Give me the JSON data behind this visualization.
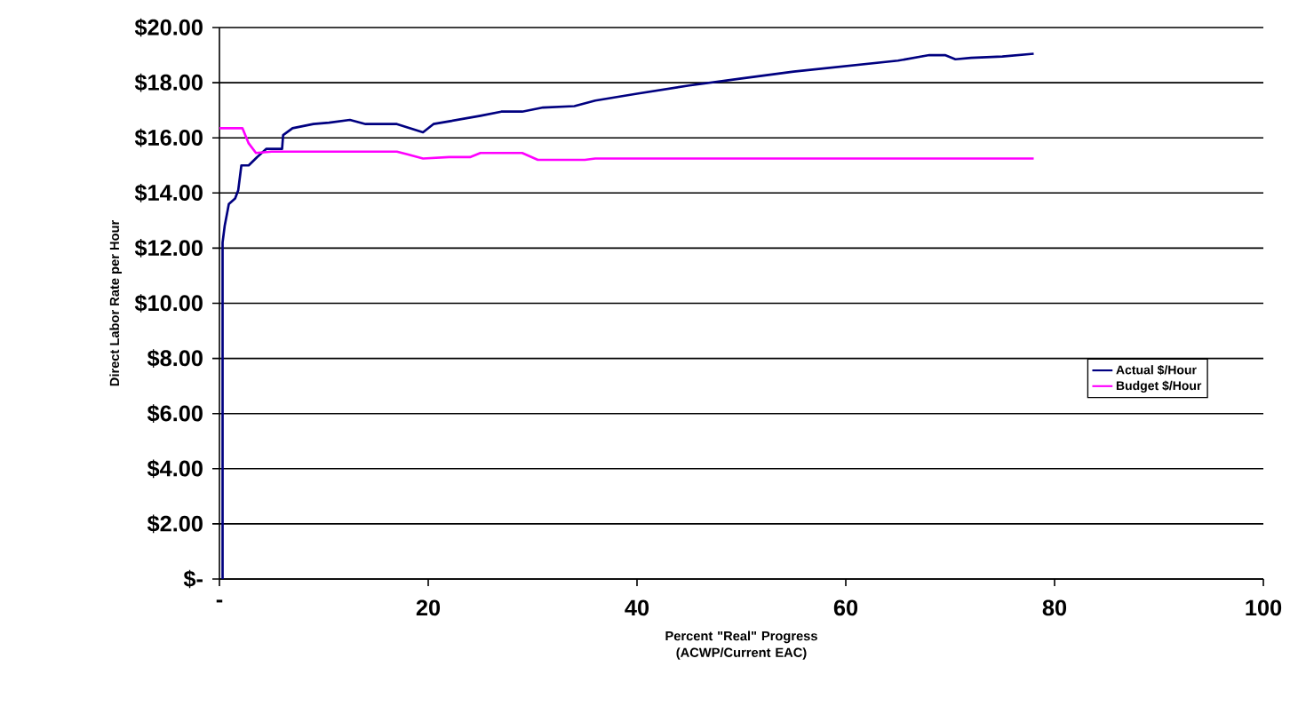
{
  "chart_data": {
    "type": "line",
    "xlabel": "Percent \"Real\" Progress (ACWP/Current EAC)",
    "ylabel": "Direct Labor Rate per Hour",
    "series": [
      {
        "name": "Actual $/Hour",
        "color": "#000080",
        "x": [
          0.3,
          0.3,
          0.5,
          0.9,
          1.5,
          1.8,
          2.1,
          2.8,
          3.6,
          4.5,
          6.0,
          6.1,
          7,
          9,
          10.5,
          12.5,
          14,
          17,
          19.5,
          20.5,
          22,
          25,
          27,
          29,
          31,
          34,
          36,
          40,
          45,
          50,
          55,
          60,
          65,
          68,
          69.5,
          70.5,
          72,
          75,
          78
        ],
        "values": [
          0,
          12.2,
          12.8,
          13.6,
          13.8,
          14.1,
          15.0,
          15.0,
          15.3,
          15.6,
          15.6,
          16.1,
          16.35,
          16.5,
          16.55,
          16.65,
          16.5,
          16.5,
          16.2,
          16.5,
          16.6,
          16.8,
          16.95,
          16.95,
          17.1,
          17.15,
          17.35,
          17.6,
          17.9,
          18.15,
          18.4,
          18.6,
          18.8,
          19.0,
          19.0,
          18.85,
          18.9,
          18.95,
          19.05
        ]
      },
      {
        "name": "Budget $/Hour",
        "color": "#ff00ff",
        "x": [
          0,
          2.2,
          2.8,
          3.5,
          5,
          17,
          18,
          19.5,
          22,
          24,
          25,
          29,
          30.5,
          35,
          36,
          78
        ],
        "values": [
          16.35,
          16.35,
          15.8,
          15.45,
          15.5,
          15.5,
          15.4,
          15.25,
          15.3,
          15.3,
          15.45,
          15.45,
          15.2,
          15.2,
          15.25,
          15.25
        ]
      }
    ],
    "xlim": [
      0,
      100
    ],
    "xticks": [
      {
        "value": 0,
        "label": "-"
      },
      20,
      40,
      60,
      80,
      100
    ],
    "ylim": [
      0,
      20
    ],
    "yticks": [
      {
        "value": 0,
        "label": "$-"
      },
      {
        "value": 2,
        "label": "$2.00"
      },
      {
        "value": 4,
        "label": "$4.00"
      },
      {
        "value": 6,
        "label": "$6.00"
      },
      {
        "value": 8,
        "label": "$8.00"
      },
      {
        "value": 10,
        "label": "$10.00"
      },
      {
        "value": 12,
        "label": "$12.00"
      },
      {
        "value": 14,
        "label": "$14.00"
      },
      {
        "value": 16,
        "label": "$16.00"
      },
      {
        "value": 18,
        "label": "$18.00"
      },
      {
        "value": 20,
        "label": "$20.00"
      }
    ],
    "grid": "y",
    "legend": "right",
    "marker": "none",
    "line_style": "solid"
  }
}
